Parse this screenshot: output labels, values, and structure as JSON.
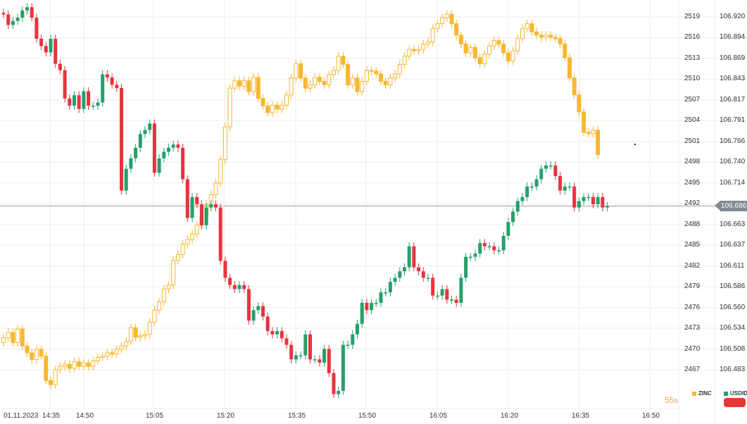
{
  "colors": {
    "zinc": "#f7b731",
    "up": "#26a06a",
    "down": "#e8333f",
    "grid": "#eeeeee",
    "price_line": "#9aa3a8",
    "dot": "#2233dd",
    "button": "#e53935"
  },
  "axis_zinc": [
    "2519",
    "2516",
    "2513",
    "2510",
    "2507",
    "2504",
    "2501",
    "2498",
    "2495",
    "2492",
    "2488",
    "2485",
    "2482",
    "2479",
    "2476",
    "2473",
    "2470",
    "2467"
  ],
  "axis_usdidx": [
    "106.920",
    "106.894",
    "106.869",
    "106.843",
    "106.817",
    "106.791",
    "106.766",
    "106.740",
    "106.714",
    "",
    "106.663",
    "106.637",
    "106.611",
    "106.586",
    "106.560",
    "106.534",
    "106.508",
    "106.483"
  ],
  "time_labels": [
    "01.11.2023",
    "14:35",
    "14:50",
    "15:05",
    "15:20",
    "15:35",
    "15:50",
    "16:05",
    "16:20",
    "16:35",
    "16:50"
  ],
  "current_price": "106.686",
  "timer": {
    "value": "55",
    "unit": "s"
  },
  "legend": {
    "zinc": "ZINC",
    "usdidx": "USDIDX"
  },
  "chart_data": {
    "type": "candlestick",
    "xlabel": "",
    "ylabel": "",
    "ylim_zinc": [
      2467,
      2519
    ],
    "ylim_usdidx": [
      106.483,
      106.92
    ],
    "zinc_open": 2471.0,
    "zinc_close": [
      2471.7,
      2472.5,
      2471.0,
      2473.0,
      2470.5,
      2469.5,
      2468.5,
      2470.0,
      2469.0,
      2465.4,
      2464.8,
      2467.0,
      2467.5,
      2467.8,
      2467.2,
      2468.2,
      2467.5,
      2468.0,
      2467.5,
      2468.3,
      2468.8,
      2469.0,
      2469.5,
      2469.3,
      2470.0,
      2470.5,
      2471.2,
      2473.2,
      2471.8,
      2472.0,
      2472.2,
      2474.0,
      2475.8,
      2477.0,
      2478.9,
      2479.5,
      2483.1,
      2484.0,
      2485.5,
      2486.2,
      2487.0,
      2488.3,
      2489.5,
      2491.4,
      2492.8,
      2494.5,
      2498.0,
      2502.8,
      2508.5,
      2509.6,
      2508.8,
      2509.6,
      2508.0,
      2510.1,
      2507.0,
      2505.9,
      2504.9,
      2506.0,
      2505.4,
      2506.0,
      2507.5,
      2510.0,
      2512.1,
      2510.0,
      2508.5,
      2509.0,
      2510.1,
      2509.5,
      2509.0,
      2510.5,
      2511.1,
      2513.2,
      2512.0,
      2509.0,
      2510.0,
      2508.0,
      2509.5,
      2511.1,
      2511.0,
      2510.6,
      2509.5,
      2509.0,
      2510.0,
      2510.6,
      2512.0,
      2513.2,
      2514.2,
      2514.0,
      2514.2,
      2515.0,
      2515.3,
      2517.3,
      2518.0,
      2518.9,
      2519.4,
      2518.0,
      2516.3,
      2515.0,
      2513.7,
      2514.5,
      2513.0,
      2512.1,
      2513.5,
      2514.7,
      2515.5,
      2515.0,
      2513.7,
      2512.5,
      2514.0,
      2515.8,
      2517.3,
      2518.0,
      2516.8,
      2516.3,
      2516.0,
      2516.3,
      2516.0,
      2515.8,
      2515.0,
      2513.0,
      2510.0,
      2507.5,
      2505.0,
      2502.0,
      2501.8,
      2502.3,
      2498.7
    ],
    "usdidx_open": 106.925,
    "usdidx_close": [
      106.923,
      106.91,
      106.915,
      106.919,
      106.928,
      106.932,
      106.919,
      106.893,
      106.884,
      106.876,
      106.893,
      106.862,
      106.854,
      106.819,
      106.81,
      106.823,
      106.806,
      106.828,
      106.81,
      106.81,
      106.814,
      106.849,
      106.845,
      106.836,
      106.832,
      106.705,
      106.732,
      106.745,
      106.758,
      106.775,
      106.78,
      106.788,
      106.727,
      106.745,
      106.753,
      106.758,
      106.762,
      106.758,
      106.719,
      106.671,
      106.697,
      106.688,
      106.662,
      106.684,
      106.688,
      106.684,
      106.618,
      106.597,
      106.588,
      106.583,
      106.588,
      106.583,
      106.544,
      106.557,
      106.562,
      106.549,
      106.531,
      106.527,
      106.531,
      106.522,
      106.514,
      106.496,
      106.501,
      106.501,
      106.527,
      106.496,
      106.496,
      106.492,
      106.509,
      106.479,
      106.453,
      106.457,
      106.514,
      106.514,
      106.527,
      106.54,
      106.566,
      106.557,
      106.566,
      106.566,
      106.579,
      106.579,
      106.592,
      106.597,
      106.605,
      106.61,
      106.636,
      106.61,
      106.605,
      106.597,
      106.597,
      106.575,
      106.575,
      106.583,
      106.57,
      106.57,
      106.566,
      106.597,
      106.623,
      106.623,
      106.627,
      106.64,
      106.636,
      106.636,
      106.631,
      106.631,
      106.649,
      106.666,
      106.679,
      106.692,
      106.697,
      106.71,
      106.71,
      106.719,
      106.732,
      106.736,
      106.736,
      106.723,
      106.705,
      106.71,
      106.71,
      106.684,
      106.692,
      106.697,
      106.697,
      106.688,
      106.697,
      106.684,
      106.686
    ]
  }
}
